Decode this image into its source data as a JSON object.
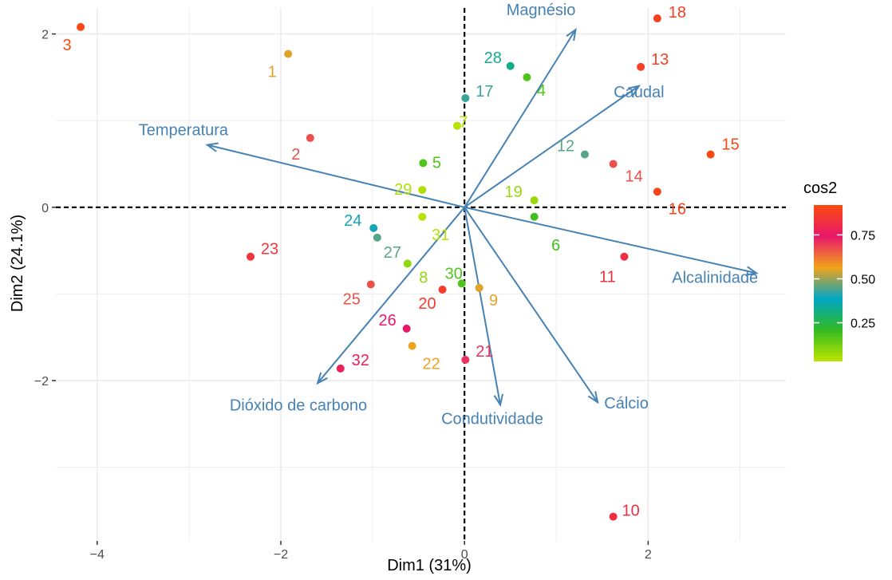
{
  "chart_data": {
    "type": "scatter",
    "title": "",
    "xlabel": "Dim1 (31%)",
    "ylabel": "Dim2 (24.1%)",
    "xlim": [
      -4.45,
      3.5
    ],
    "ylim": [
      -3.85,
      2.3
    ],
    "x_ticks": [
      -4,
      -2,
      0,
      2
    ],
    "x_tick_labels": [
      "−4",
      "−2",
      "0",
      "2"
    ],
    "y_ticks": [
      -2,
      0,
      2
    ],
    "y_tick_labels": [
      "−2",
      "0",
      "2"
    ],
    "grid": true,
    "reference_lines": {
      "x": 0,
      "y": 0,
      "style": "dashed"
    },
    "legend": {
      "title": "cos2",
      "position": "right",
      "colorbar_ticks": [
        0.25,
        0.5,
        0.75
      ],
      "colorbar_tick_labels": [
        "0.25",
        "0.50",
        "0.75"
      ],
      "range": [
        0.03,
        0.92
      ],
      "gradient": [
        "#bfe500",
        "#33bb22",
        "#00a6c4",
        "#f2a31a",
        "#e8176a",
        "#fb4c0f"
      ]
    },
    "points": [
      {
        "label": "1",
        "x": -1.92,
        "y": 1.77,
        "cos2": 0.55
      },
      {
        "label": "2",
        "x": -1.68,
        "y": 0.8,
        "cos2": 0.67
      },
      {
        "label": "3",
        "x": -4.18,
        "y": 2.08,
        "cos2": 0.91
      },
      {
        "label": "4",
        "x": 0.68,
        "y": 1.5,
        "cos2": 0.17
      },
      {
        "label": "5",
        "x": -0.45,
        "y": 0.51,
        "cos2": 0.17
      },
      {
        "label": "6",
        "x": 0.76,
        "y": -0.11,
        "cos2": 0.19
      },
      {
        "label": "7",
        "x": -0.08,
        "y": 0.94,
        "cos2": 0.04
      },
      {
        "label": "8",
        "x": -0.62,
        "y": -0.65,
        "cos2": 0.09
      },
      {
        "label": "9",
        "x": 0.16,
        "y": -0.93,
        "cos2": 0.55
      },
      {
        "label": "10",
        "x": 1.62,
        "y": -3.57,
        "cos2": 0.82
      },
      {
        "label": "11",
        "x": 1.74,
        "y": -0.57,
        "cos2": 0.82
      },
      {
        "label": "12",
        "x": 1.31,
        "y": 0.61,
        "cos2": 0.45
      },
      {
        "label": "13",
        "x": 1.92,
        "y": 1.62,
        "cos2": 0.88
      },
      {
        "label": "14",
        "x": 1.62,
        "y": 0.5,
        "cos2": 0.67
      },
      {
        "label": "15",
        "x": 2.68,
        "y": 0.61,
        "cos2": 0.91
      },
      {
        "label": "16",
        "x": 2.1,
        "y": 0.18,
        "cos2": 0.9
      },
      {
        "label": "17",
        "x": 0.01,
        "y": 1.26,
        "cos2": 0.43
      },
      {
        "label": "18",
        "x": 2.1,
        "y": 2.18,
        "cos2": 0.88
      },
      {
        "label": "19",
        "x": 0.76,
        "y": 0.08,
        "cos2": 0.08
      },
      {
        "label": "20",
        "x": -0.24,
        "y": -0.95,
        "cos2": 0.86
      },
      {
        "label": "21",
        "x": 0.01,
        "y": -1.76,
        "cos2": 0.71
      },
      {
        "label": "22",
        "x": -0.57,
        "y": -1.6,
        "cos2": 0.56
      },
      {
        "label": "23",
        "x": -2.33,
        "y": -0.57,
        "cos2": 0.84
      },
      {
        "label": "24",
        "x": -0.99,
        "y": -0.24,
        "cos2": 0.4
      },
      {
        "label": "25",
        "x": -1.02,
        "y": -0.89,
        "cos2": 0.67
      },
      {
        "label": "26",
        "x": -0.63,
        "y": -1.4,
        "cos2": 0.74
      },
      {
        "label": "27",
        "x": -0.95,
        "y": -0.35,
        "cos2": 0.45
      },
      {
        "label": "28",
        "x": 0.5,
        "y": 1.63,
        "cos2": 0.32
      },
      {
        "label": "29",
        "x": -0.46,
        "y": 0.2,
        "cos2": 0.05
      },
      {
        "label": "30",
        "x": -0.03,
        "y": -0.88,
        "cos2": 0.17
      },
      {
        "label": "31",
        "x": -0.46,
        "y": -0.11,
        "cos2": 0.04
      },
      {
        "label": "32",
        "x": -1.35,
        "y": -1.86,
        "cos2": 0.77
      }
    ],
    "variables": [
      {
        "name": "Magnésio",
        "x": 1.21,
        "y": 2.05
      },
      {
        "name": "Caudal",
        "x": 1.9,
        "y": 1.4
      },
      {
        "name": "Temperatura",
        "x": -2.8,
        "y": 0.72
      },
      {
        "name": "Alcalinidade",
        "x": 3.18,
        "y": -0.76
      },
      {
        "name": "Cálcio",
        "x": 1.45,
        "y": -2.25
      },
      {
        "name": "Condutividade",
        "x": 0.39,
        "y": -2.28
      },
      {
        "name": "Dióxido de carbono",
        "x": -1.6,
        "y": -2.03
      }
    ],
    "arrow_color": "#4682B4"
  }
}
